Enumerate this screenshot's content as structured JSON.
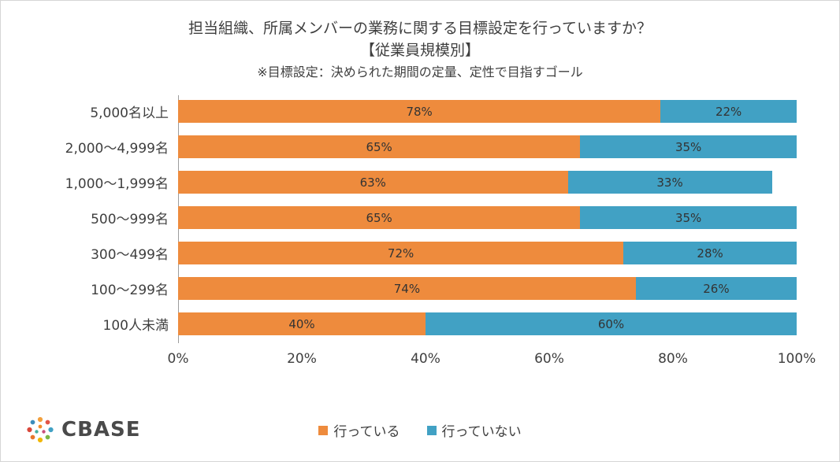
{
  "chart_data": {
    "type": "bar",
    "orientation": "horizontal",
    "stacked": true,
    "title": "担当組織、所属メンバーの業務に関する目標設定を行っていますか？",
    "subtitle": "【従業員規模別】",
    "note": "※目標設定：決められた期間の定量、定性で目指すゴール",
    "categories": [
      "5,000名以上",
      "2,000～4,999名",
      "1,000～1,999名",
      "500～999名",
      "300～499名",
      "100～299名",
      "100人未満"
    ],
    "series": [
      {
        "key": "doing",
        "name": "行っている",
        "color": "#EE8B3D",
        "values": [
          78,
          65,
          63,
          65,
          72,
          74,
          40
        ]
      },
      {
        "key": "not-doing",
        "name": "行っていない",
        "color": "#41A1C4",
        "values": [
          22,
          35,
          33,
          35,
          28,
          26,
          60
        ]
      }
    ],
    "x_ticks": [
      "0%",
      "20%",
      "40%",
      "60%",
      "80%",
      "100%"
    ],
    "xlim": [
      0,
      100
    ],
    "grid": false,
    "legend_position": "bottom"
  },
  "logo": {
    "text": "CBASE"
  },
  "colors": {
    "doing": "#EE8B3D",
    "not_doing": "#41A1C4",
    "text": "#3f3f3f"
  }
}
